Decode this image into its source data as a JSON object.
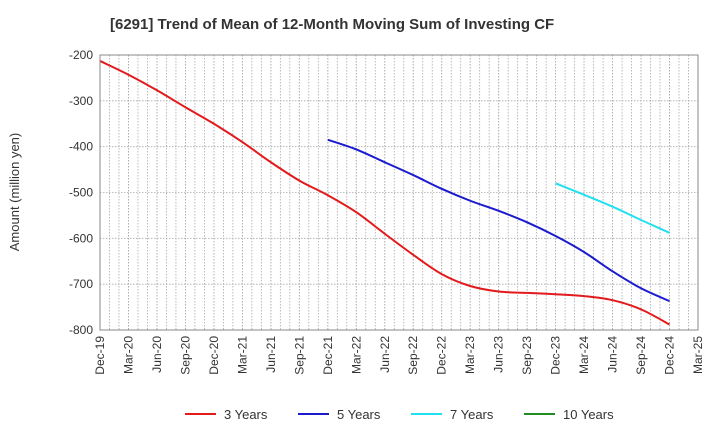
{
  "chart_data": {
    "type": "line",
    "title": "[6291]  Trend of Mean of 12-Month Moving Sum of Investing CF",
    "xlabel": "",
    "ylabel": "Amount (million yen)",
    "ylim": [
      -800,
      -200
    ],
    "yticks": [
      -200,
      -300,
      -400,
      -500,
      -600,
      -700,
      -800
    ],
    "grid": true,
    "legend_position": "bottom",
    "categories": [
      "Dec-19",
      "Mar-20",
      "Jun-20",
      "Sep-20",
      "Dec-20",
      "Mar-21",
      "Jun-21",
      "Sep-21",
      "Dec-21",
      "Mar-22",
      "Jun-22",
      "Sep-22",
      "Dec-22",
      "Mar-23",
      "Jun-23",
      "Sep-23",
      "Dec-23",
      "Mar-24",
      "Jun-24",
      "Sep-24",
      "Dec-24",
      "Mar-25"
    ],
    "series": [
      {
        "name": "3 Years",
        "color": "#e31a1c",
        "points": [
          [
            0,
            -213
          ],
          [
            1,
            -243
          ],
          [
            2,
            -277
          ],
          [
            3,
            -314
          ],
          [
            4,
            -350
          ],
          [
            5,
            -390
          ],
          [
            6,
            -434
          ],
          [
            7,
            -474
          ],
          [
            8,
            -506
          ],
          [
            9,
            -543
          ],
          [
            10,
            -590
          ],
          [
            11,
            -636
          ],
          [
            12,
            -678
          ],
          [
            13,
            -704
          ],
          [
            14,
            -716
          ],
          [
            15,
            -719
          ],
          [
            16,
            -722
          ],
          [
            17,
            -726
          ],
          [
            18,
            -735
          ],
          [
            19,
            -755
          ],
          [
            20,
            -788
          ]
        ]
      },
      {
        "name": "5 Years",
        "color": "#1a1acf",
        "points": [
          [
            8,
            -385
          ],
          [
            9,
            -406
          ],
          [
            10,
            -434
          ],
          [
            11,
            -462
          ],
          [
            12,
            -492
          ],
          [
            13,
            -518
          ],
          [
            14,
            -540
          ],
          [
            15,
            -565
          ],
          [
            16,
            -595
          ],
          [
            17,
            -630
          ],
          [
            18,
            -672
          ],
          [
            19,
            -709
          ],
          [
            20,
            -737
          ]
        ]
      },
      {
        "name": "7 Years",
        "color": "#22e0f0",
        "points": [
          [
            16,
            -480
          ],
          [
            17,
            -505
          ],
          [
            18,
            -531
          ],
          [
            19,
            -560
          ],
          [
            20,
            -588
          ]
        ]
      },
      {
        "name": "10 Years",
        "color": "#228b22",
        "points": []
      }
    ]
  }
}
